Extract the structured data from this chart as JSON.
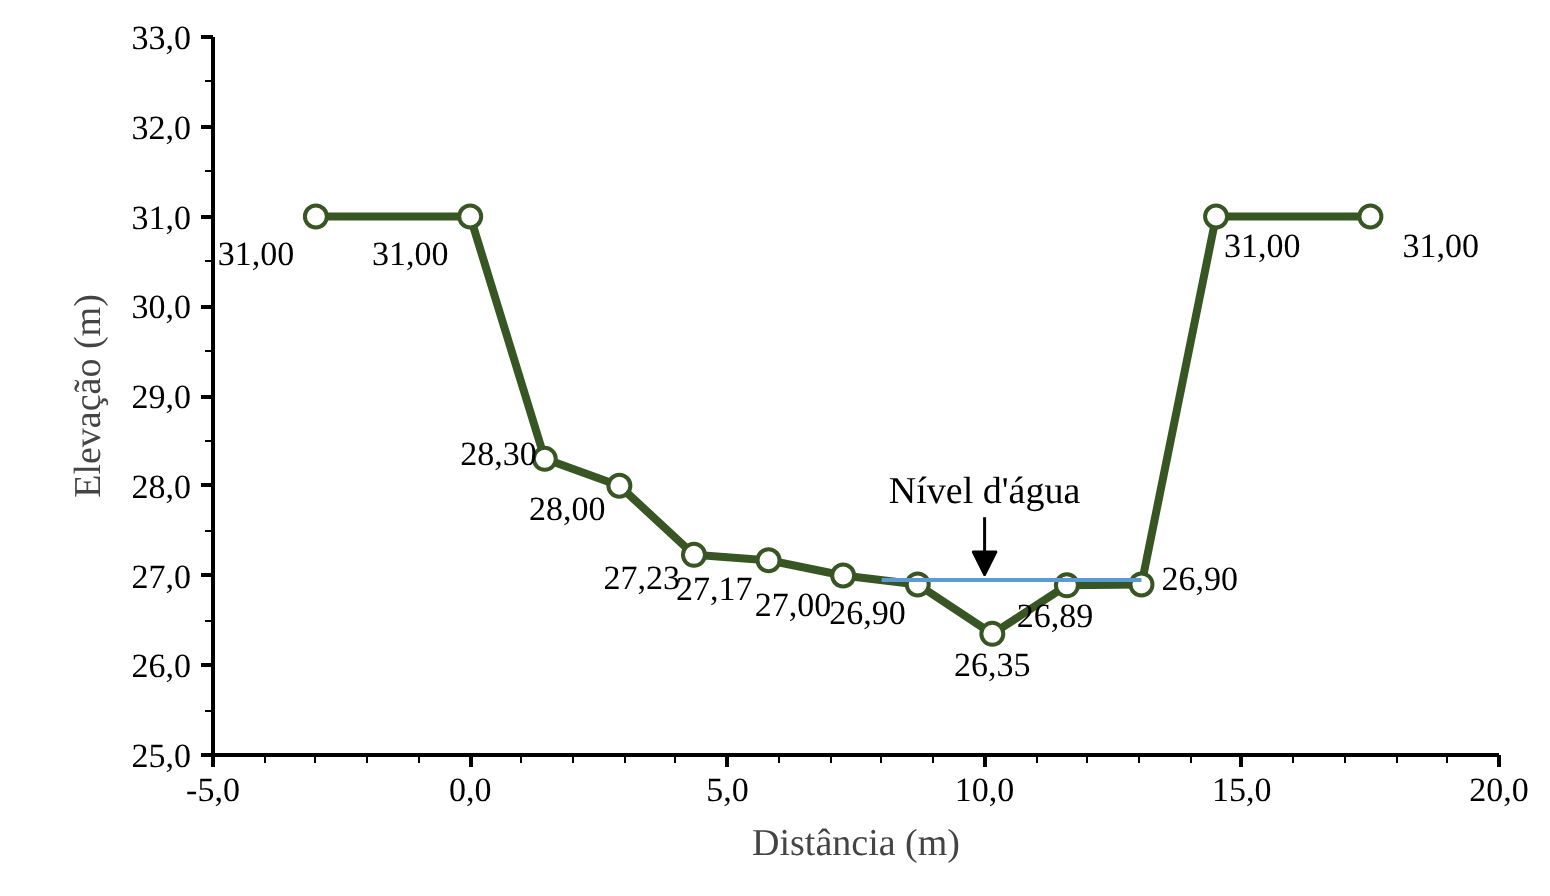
{
  "chart_data": {
    "type": "line",
    "xlabel": "Distância (m)",
    "ylabel": "Elevação (m)",
    "x": [
      -3,
      0,
      1.45,
      2.9,
      4.35,
      5.8,
      7.25,
      8.7,
      10.15,
      11.6,
      13.05,
      14.5,
      17.5
    ],
    "series": [
      {
        "color": "#375623",
        "values": [
          31.0,
          31.0,
          28.3,
          28.0,
          27.23,
          27.17,
          27.0,
          26.9,
          26.35,
          26.89,
          26.9,
          31.0,
          31.0
        ],
        "marker": "circle",
        "value_labels": [
          "31,00",
          "31,00",
          "28,30",
          "28,00",
          "27,23",
          "27,17",
          "27,00",
          "26,90",
          "26,35",
          "26,89",
          "26,90",
          "31,00",
          "31,00"
        ]
      },
      {
        "color": "#5b9bd5",
        "x": [
          8.0,
          13.05
        ],
        "values": [
          26.95,
          26.95
        ],
        "marker": "none"
      }
    ],
    "annotations": [
      {
        "text": "Nível d'água",
        "x": 10,
        "y": 26.95
      }
    ],
    "xlim": [
      -5,
      20
    ],
    "ylim": [
      25,
      33
    ],
    "xticks": [
      {
        "value": -5,
        "label": "-5,0"
      },
      {
        "value": 0,
        "label": "0,0"
      },
      {
        "value": 5,
        "label": "5,0"
      },
      {
        "value": 10,
        "label": "10,0"
      },
      {
        "value": 15,
        "label": "15,0"
      },
      {
        "value": 20,
        "label": "20,0"
      }
    ],
    "yticks": [
      {
        "value": 25,
        "label": "25,0"
      },
      {
        "value": 26,
        "label": "26,0"
      },
      {
        "value": 27,
        "label": "27,0"
      },
      {
        "value": 28,
        "label": "28,0"
      },
      {
        "value": 29,
        "label": "29,0"
      },
      {
        "value": 30,
        "label": "30,0"
      },
      {
        "value": 31,
        "label": "31,0"
      },
      {
        "value": 32,
        "label": "32,0"
      },
      {
        "value": 33,
        "label": "33,0"
      }
    ],
    "line_style": "solid"
  }
}
